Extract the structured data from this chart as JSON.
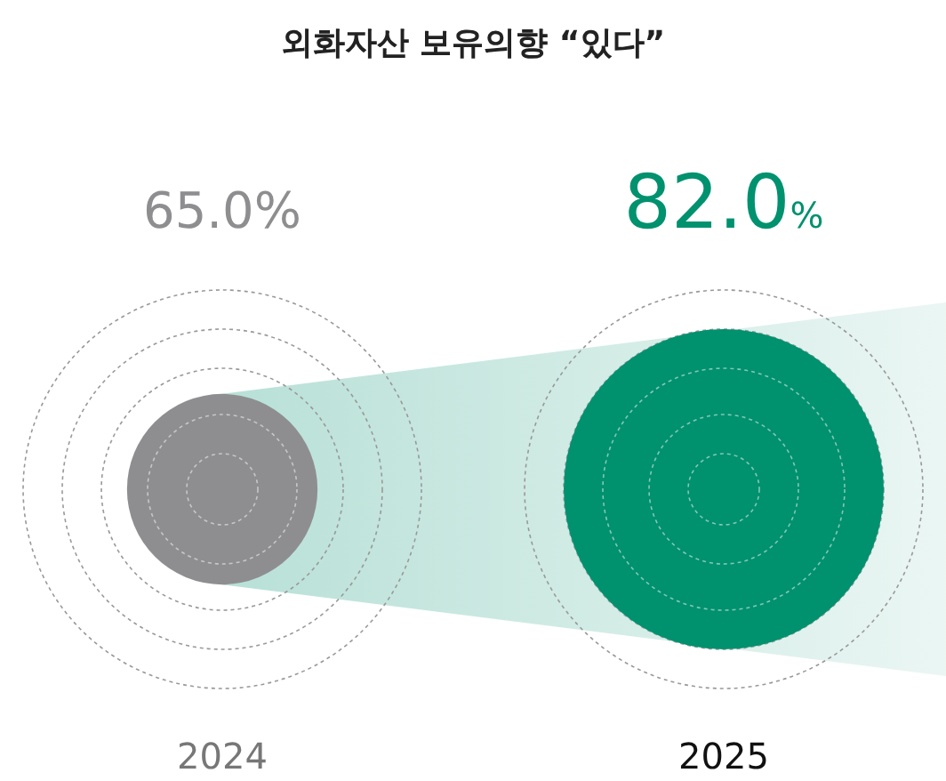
{
  "chart_data": {
    "type": "other",
    "title": "외화자산 보유의향 “있다”",
    "categories": [
      "2024",
      "2025"
    ],
    "values": [
      65.0,
      82.0
    ],
    "value_labels": [
      "65.0%",
      "82.0%"
    ],
    "colors": [
      "#8e8e90",
      "#00916e"
    ]
  }
}
